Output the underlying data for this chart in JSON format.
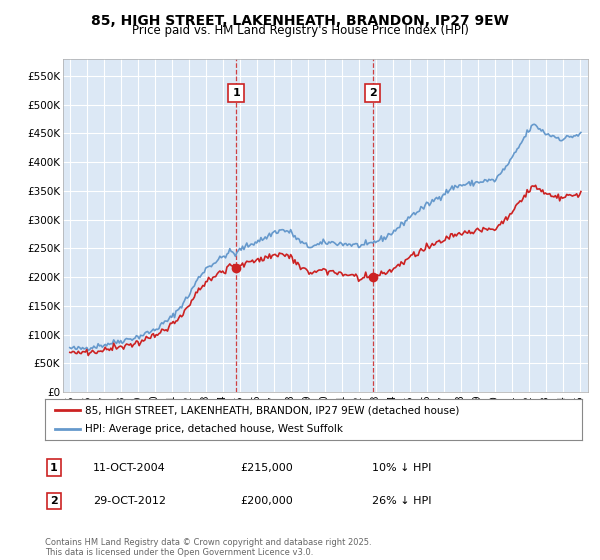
{
  "title": "85, HIGH STREET, LAKENHEATH, BRANDON, IP27 9EW",
  "subtitle": "Price paid vs. HM Land Registry's House Price Index (HPI)",
  "ylim": [
    0,
    580000
  ],
  "yticks": [
    0,
    50000,
    100000,
    150000,
    200000,
    250000,
    300000,
    350000,
    400000,
    450000,
    500000,
    550000
  ],
  "ytick_labels": [
    "£0",
    "£50K",
    "£100K",
    "£150K",
    "£200K",
    "£250K",
    "£300K",
    "£350K",
    "£400K",
    "£450K",
    "£500K",
    "£550K"
  ],
  "background_color": "#ffffff",
  "plot_bg_color": "#dce8f5",
  "grid_color": "#ffffff",
  "legend_label_red": "85, HIGH STREET, LAKENHEATH, BRANDON, IP27 9EW (detached house)",
  "legend_label_blue": "HPI: Average price, detached house, West Suffolk",
  "footnote": "Contains HM Land Registry data © Crown copyright and database right 2025.\nThis data is licensed under the Open Government Licence v3.0.",
  "transaction1_date": "11-OCT-2004",
  "transaction1_price": "£215,000",
  "transaction1_hpi": "10% ↓ HPI",
  "transaction2_date": "29-OCT-2012",
  "transaction2_price": "£200,000",
  "transaction2_hpi": "26% ↓ HPI",
  "red_color": "#cc2222",
  "blue_color": "#6699cc",
  "transaction1_x": 2004.79,
  "transaction2_x": 2012.83,
  "transaction1_y": 215000,
  "transaction2_y": 200000,
  "xmin": 1994.6,
  "xmax": 2025.5
}
